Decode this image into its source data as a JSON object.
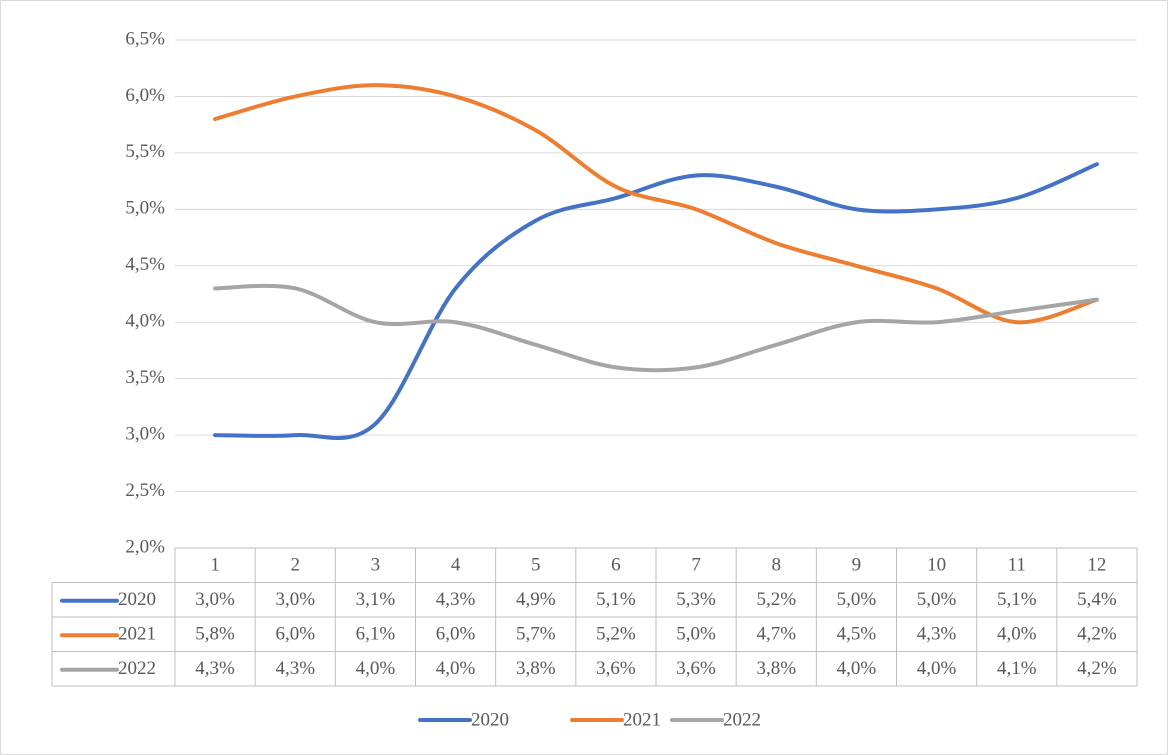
{
  "chart_data": {
    "type": "line",
    "categories": [
      "1",
      "2",
      "3",
      "4",
      "5",
      "6",
      "7",
      "8",
      "9",
      "10",
      "11",
      "12"
    ],
    "series": [
      {
        "name": "2020",
        "color": "#4472c4",
        "values": [
          3.0,
          3.0,
          3.1,
          4.3,
          4.9,
          5.1,
          5.3,
          5.2,
          5.0,
          5.0,
          5.1,
          5.4
        ],
        "value_labels": [
          "3,0%",
          "3,0%",
          "3,1%",
          "4,3%",
          "4,9%",
          "5,1%",
          "5,3%",
          "5,2%",
          "5,0%",
          "5,0%",
          "5,1%",
          "5,4%"
        ]
      },
      {
        "name": "2021",
        "color": "#ed7d31",
        "values": [
          5.8,
          6.0,
          6.1,
          6.0,
          5.7,
          5.2,
          5.0,
          4.7,
          4.5,
          4.3,
          4.0,
          4.2
        ],
        "value_labels": [
          "5,8%",
          "6,0%",
          "6,1%",
          "6,0%",
          "5,7%",
          "5,2%",
          "5,0%",
          "4,7%",
          "4,5%",
          "4,3%",
          "4,0%",
          "4,2%"
        ]
      },
      {
        "name": "2022",
        "color": "#a5a5a5",
        "values": [
          4.3,
          4.3,
          4.0,
          4.0,
          3.8,
          3.6,
          3.6,
          3.8,
          4.0,
          4.0,
          4.1,
          4.2
        ],
        "value_labels": [
          "4,3%",
          "4,3%",
          "4,0%",
          "4,0%",
          "3,8%",
          "3,6%",
          "3,6%",
          "3,8%",
          "4,0%",
          "4,0%",
          "4,1%",
          "4,2%"
        ]
      }
    ],
    "ylim": [
      2.0,
      6.5
    ],
    "yticks": [
      {
        "value": 2.0,
        "label": "2,0%"
      },
      {
        "value": 2.5,
        "label": "2,5%"
      },
      {
        "value": 3.0,
        "label": "3,0%"
      },
      {
        "value": 3.5,
        "label": "3,5%"
      },
      {
        "value": 4.0,
        "label": "4,0%"
      },
      {
        "value": 4.5,
        "label": "4,5%"
      },
      {
        "value": 5.0,
        "label": "5,0%"
      },
      {
        "value": 5.5,
        "label": "5,5%"
      },
      {
        "value": 6.0,
        "label": "6,0%"
      },
      {
        "value": 6.5,
        "label": "6,5%"
      }
    ],
    "grid": true,
    "smooth": true,
    "data_table": true,
    "legend": "bottom"
  }
}
